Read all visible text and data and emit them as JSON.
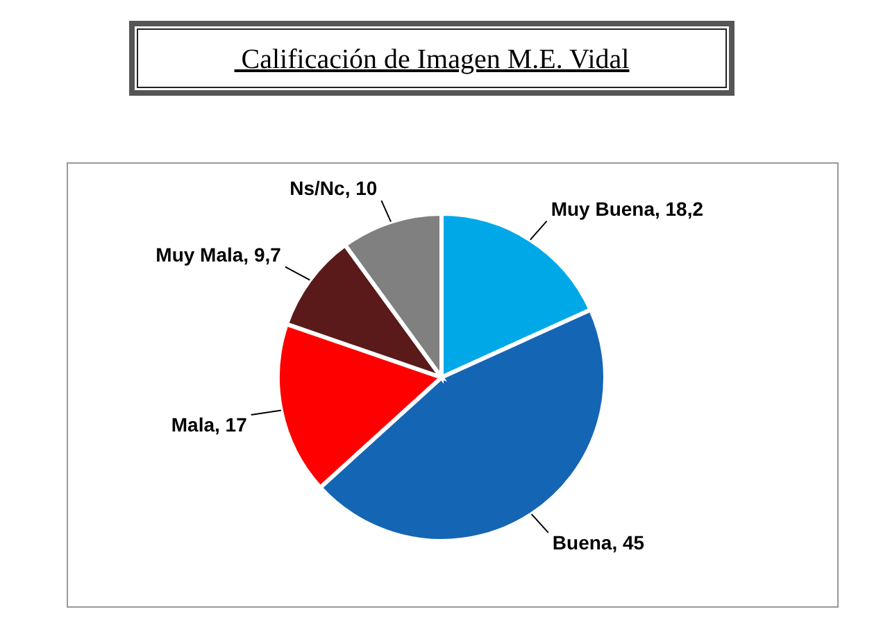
{
  "chart_data": {
    "type": "pie",
    "title": " Calificación de Imagen M.E. Vidal",
    "categories": [
      "Muy Buena",
      "Buena",
      "Mala",
      "Muy Mala",
      "Ns/Nc"
    ],
    "values": [
      18.2,
      45,
      17,
      9.7,
      10
    ],
    "colors": [
      "#00a8e8",
      "#1565b5",
      "#ff0000",
      "#5a1a1a",
      "#808080"
    ],
    "value_labels": [
      "18,2",
      "45",
      "17",
      "9,7",
      "10"
    ],
    "legend": false
  }
}
